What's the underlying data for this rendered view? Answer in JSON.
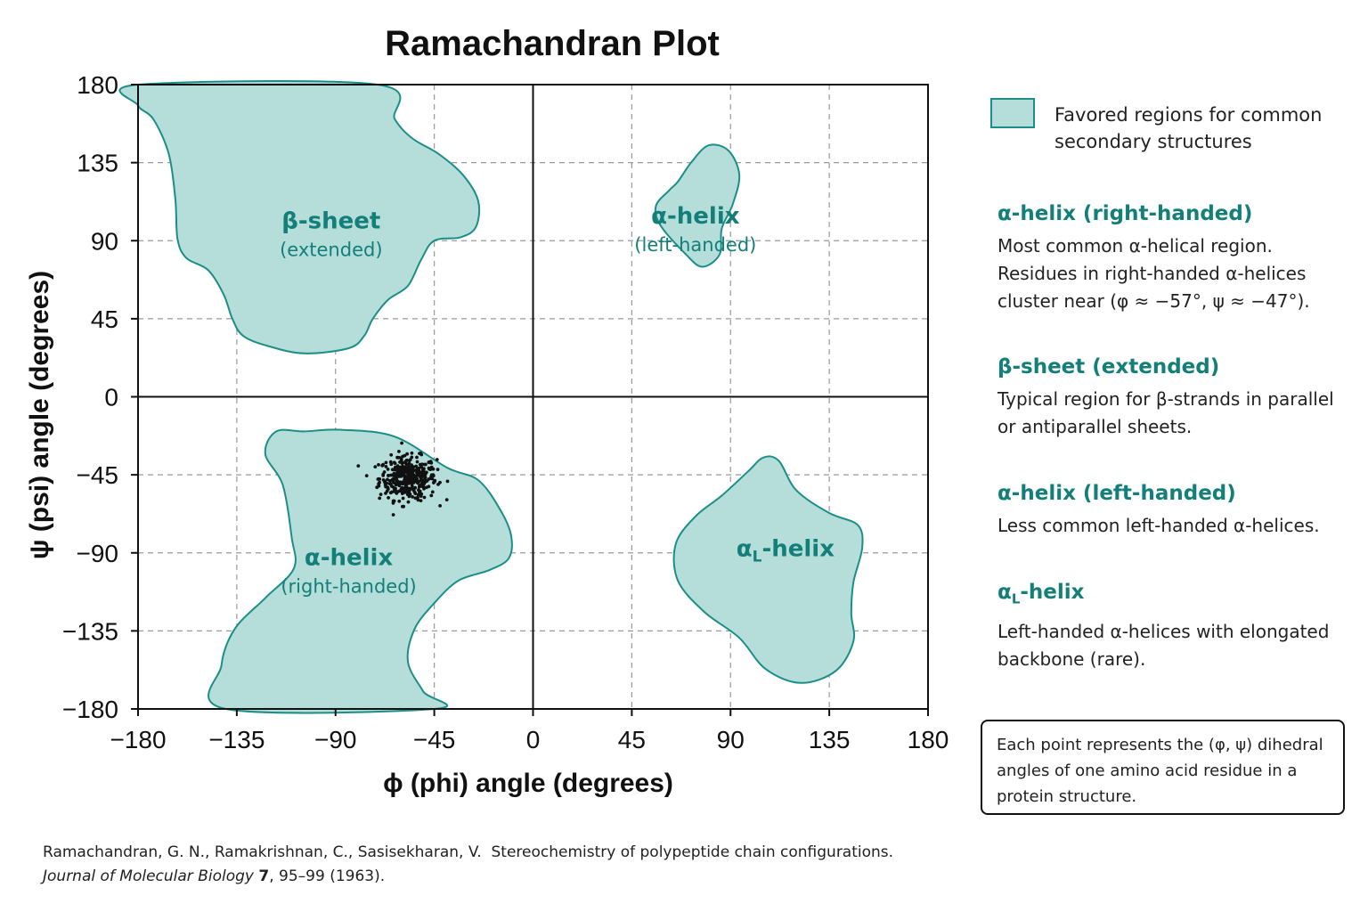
{
  "chart_data": {
    "type": "scatter",
    "title": "Ramachandran Plot",
    "xlabel": "ϕ (phi) angle (degrees)",
    "ylabel": "ψ (psi) angle (degrees)",
    "xlim": [
      -180,
      180
    ],
    "ylim": [
      -180,
      180
    ],
    "x_ticks": [
      "−180",
      "−135",
      "−90",
      "−45",
      "0",
      "45",
      "90",
      "135",
      "180"
    ],
    "y_ticks": [
      "180",
      "135",
      "90",
      "45",
      "0",
      "−45",
      "−90",
      "−135",
      "−180"
    ],
    "grid": true,
    "regions": [
      {
        "label": "β-sheet",
        "sublabel": "(extended)",
        "outline": [
          [
            -180,
            180
          ],
          [
            -71,
            180
          ],
          [
            -63,
            160
          ],
          [
            -55,
            149
          ],
          [
            -43,
            140
          ],
          [
            -32,
            128
          ],
          [
            -25,
            113
          ],
          [
            -26,
            98
          ],
          [
            -33,
            92
          ],
          [
            -45,
            90
          ],
          [
            -51,
            79
          ],
          [
            -57,
            64
          ],
          [
            -66,
            56
          ],
          [
            -73,
            45
          ],
          [
            -77,
            35
          ],
          [
            -84,
            28
          ],
          [
            -104,
            25
          ],
          [
            -120,
            29
          ],
          [
            -132,
            35
          ],
          [
            -137,
            45
          ],
          [
            -141,
            59
          ],
          [
            -148,
            73
          ],
          [
            -158,
            80
          ],
          [
            -162,
            91
          ],
          [
            -163,
            114
          ],
          [
            -166,
            140
          ],
          [
            -173,
            160
          ],
          [
            -180,
            168
          ]
        ]
      },
      {
        "label": "α-helix",
        "sublabel": "(left-handed)",
        "outline": [
          [
            72,
            135
          ],
          [
            80,
            145
          ],
          [
            89,
            142
          ],
          [
            94,
            128
          ],
          [
            91,
            111
          ],
          [
            86,
            97
          ],
          [
            85,
            82
          ],
          [
            77,
            75
          ],
          [
            69,
            83
          ],
          [
            58,
            99
          ],
          [
            56,
            110
          ],
          [
            62,
            119
          ],
          [
            66,
            124
          ]
        ]
      },
      {
        "label": "α-helix",
        "sublabel": "(right-handed)",
        "outline": [
          [
            -117,
            -20
          ],
          [
            -104,
            -20
          ],
          [
            -88,
            -19
          ],
          [
            -63,
            -23
          ],
          [
            -39,
            -41
          ],
          [
            -25,
            -48
          ],
          [
            -15,
            -65
          ],
          [
            -10,
            -80
          ],
          [
            -11,
            -93
          ],
          [
            -20,
            -100
          ],
          [
            -34,
            -106
          ],
          [
            -45,
            -119
          ],
          [
            -54,
            -134
          ],
          [
            -57,
            -153
          ],
          [
            -50,
            -170
          ],
          [
            -45,
            -180
          ],
          [
            -140,
            -180
          ],
          [
            -142,
            -155
          ],
          [
            -136,
            -134
          ],
          [
            -122,
            -116
          ],
          [
            -109,
            -99
          ],
          [
            -110,
            -81
          ],
          [
            -114,
            -51
          ],
          [
            -122,
            -33
          ]
        ]
      },
      {
        "label": "α",
        "label_sub": "L",
        "label_suffix": "-helix",
        "outline": [
          [
            98,
            -43
          ],
          [
            105,
            -35
          ],
          [
            112,
            -37
          ],
          [
            120,
            -54
          ],
          [
            135,
            -67
          ],
          [
            148,
            -74
          ],
          [
            150,
            -87
          ],
          [
            146,
            -107
          ],
          [
            145,
            -125
          ],
          [
            146,
            -141
          ],
          [
            138,
            -158
          ],
          [
            122,
            -165
          ],
          [
            106,
            -157
          ],
          [
            94,
            -139
          ],
          [
            78,
            -124
          ],
          [
            66,
            -106
          ],
          [
            65,
            -85
          ],
          [
            74,
            -69
          ],
          [
            86,
            -57
          ]
        ]
      }
    ],
    "cluster_center": [
      -57,
      -47
    ],
    "cluster_count": 400,
    "point_color": "#111111",
    "region_fill": "#b5dedb",
    "region_stroke": "#1b8f87",
    "label_color": "#137f78"
  },
  "legend": {
    "swatch_label": "Favored regions for common secondary structures"
  },
  "descriptions": [
    {
      "title": "α-helix (right-handed)",
      "body": "Most common α-helical region. Residues in right-handed α-helices cluster near (φ ≈ −57°, ψ ≈ −47°)."
    },
    {
      "title": "β-sheet (extended)",
      "body": "Typical region for β-strands in parallel or antiparallel sheets."
    },
    {
      "title": "α-helix (left-handed)",
      "body": "Less common left-handed α-helices."
    },
    {
      "title": "α",
      "title_sub": "L",
      "title_suffix": "-helix",
      "body": "Left-handed α-helices with elongated backbone (rare)."
    }
  ],
  "note": "Each point represents the (φ, ψ) dihedral angles of one amino acid residue in a protein structure.",
  "citation": {
    "authors": "Ramachandran, G. N., Ramakrishnan, C., Sasisekharan, V.",
    "title": "Stereochemistry of polypeptide chain configurations.",
    "journal": "Journal of Molecular Biology",
    "volume": "7",
    "rest": ", 95–99 (1963)."
  }
}
